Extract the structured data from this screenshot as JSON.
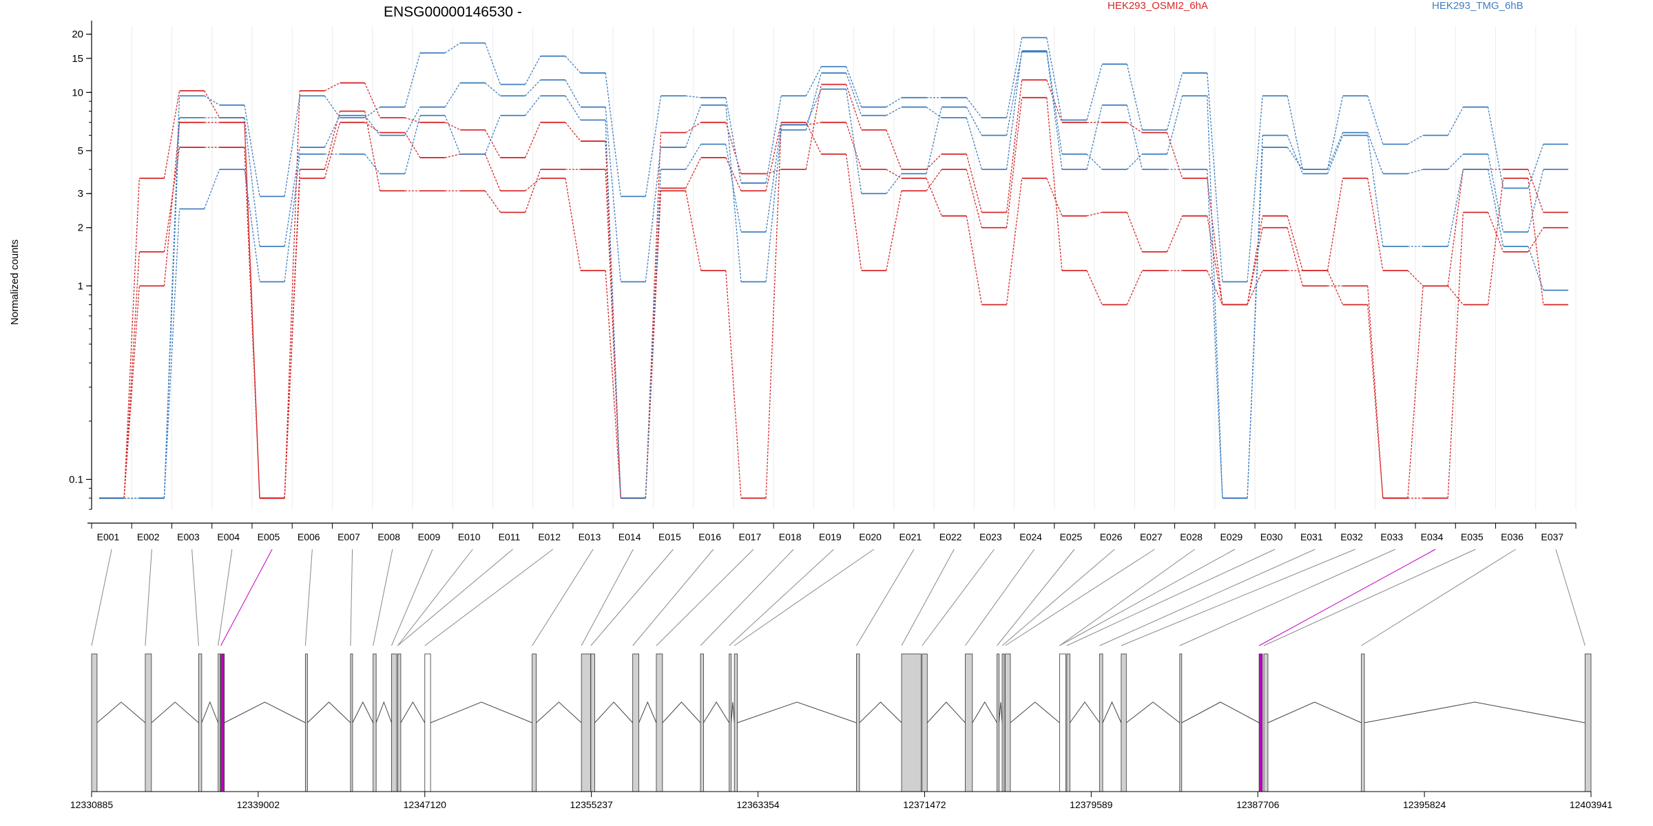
{
  "chart_data": {
    "type": "line",
    "title": "ENSG00000146530 -",
    "ylabel": "Normalized counts",
    "yscale": "log",
    "ylim": [
      0.07,
      22
    ],
    "yticks": [
      {
        "label": "0.1",
        "value": 0.1
      },
      {
        "label": "1",
        "value": 1
      },
      {
        "label": "2",
        "value": 2
      },
      {
        "label": "3",
        "value": 3
      },
      {
        "label": "5",
        "value": 5
      },
      {
        "label": "10",
        "value": 10
      },
      {
        "label": "15",
        "value": 15
      },
      {
        "label": "20",
        "value": 20
      }
    ],
    "grid": "vertical",
    "legend": [
      {
        "name": "HEK293_OSMI2_6hA",
        "color": "#d62728"
      },
      {
        "name": "HEK293_TMG_6hB",
        "color": "#3f7fbf"
      }
    ],
    "categories": [
      "E001",
      "E002",
      "E003",
      "E004",
      "E005",
      "E006",
      "E007",
      "E008",
      "E009",
      "E010",
      "E011",
      "E012",
      "E013",
      "E014",
      "E015",
      "E016",
      "E017",
      "E018",
      "E019",
      "E020",
      "E021",
      "E022",
      "E023",
      "E024",
      "E025",
      "E026",
      "E027",
      "E028",
      "E029",
      "E030",
      "E031",
      "E032",
      "E033",
      "E034",
      "E035",
      "E036",
      "E037"
    ],
    "series": [
      {
        "group": "HEK293_OSMI2_6hA",
        "color": "#d62728",
        "values": [
          0.08,
          3.6,
          10.2,
          7.4,
          0.08,
          10.2,
          11.2,
          7.4,
          7.0,
          6.4,
          4.6,
          7.0,
          5.6,
          0.08,
          6.2,
          7.0,
          3.8,
          4.0,
          11.0,
          6.4,
          4.0,
          4.8,
          2.4,
          11.6,
          7.0,
          7.0,
          6.2,
          3.6,
          0.8,
          2.3,
          1.2,
          3.6,
          1.2,
          1.0,
          4.0,
          4.0,
          2.4
        ]
      },
      {
        "group": "HEK293_OSMI2_6hA",
        "color": "#d62728",
        "values": [
          0.08,
          1.5,
          5.2,
          5.2,
          0.08,
          4.0,
          8.0,
          3.1,
          3.1,
          3.1,
          2.4,
          4.0,
          4.0,
          0.08,
          3.1,
          1.2,
          0.08,
          6.8,
          7.0,
          4.0,
          3.6,
          2.3,
          0.8,
          3.6,
          2.3,
          2.4,
          1.5,
          2.3,
          0.8,
          2.0,
          1.0,
          1.0,
          0.08,
          0.08,
          2.4,
          1.5,
          2.0
        ]
      },
      {
        "group": "HEK293_OSMI2_6hA",
        "color": "#d62728",
        "values": [
          0.08,
          1.0,
          7.0,
          7.0,
          0.08,
          3.6,
          7.0,
          6.2,
          4.6,
          4.8,
          3.1,
          3.6,
          1.2,
          0.08,
          3.2,
          4.6,
          3.1,
          7.0,
          4.8,
          1.2,
          3.1,
          4.0,
          2.0,
          9.4,
          1.2,
          0.8,
          1.2,
          1.2,
          0.8,
          1.2,
          1.2,
          0.8,
          0.08,
          1.0,
          0.8,
          3.6,
          0.8
        ]
      },
      {
        "group": "HEK293_TMG_6hB",
        "color": "#3f7fbf",
        "values": [
          0.08,
          0.08,
          9.6,
          8.6,
          2.9,
          9.6,
          7.4,
          8.4,
          16.0,
          18.0,
          11.0,
          15.4,
          12.6,
          2.9,
          9.6,
          9.4,
          3.4,
          9.6,
          13.6,
          8.4,
          9.4,
          9.4,
          7.4,
          19.2,
          7.2,
          14.0,
          6.4,
          12.6,
          1.05,
          9.6,
          4.0,
          9.6,
          5.4,
          6.0,
          8.4,
          3.2,
          5.4
        ]
      },
      {
        "group": "HEK293_TMG_6hB",
        "color": "#3f7fbf",
        "values": [
          0.08,
          0.08,
          7.4,
          7.4,
          1.6,
          5.2,
          7.6,
          6.0,
          8.4,
          11.2,
          9.6,
          11.6,
          8.4,
          1.05,
          5.2,
          8.6,
          1.05,
          6.4,
          12.6,
          7.6,
          8.4,
          7.4,
          4.0,
          16.4,
          4.8,
          4.0,
          4.8,
          9.6,
          0.08,
          5.2,
          4.0,
          6.2,
          3.8,
          4.0,
          4.8,
          1.9,
          4.0
        ]
      },
      {
        "group": "HEK293_TMG_6hB",
        "color": "#3f7fbf",
        "values": [
          0.08,
          0.08,
          2.5,
          4.0,
          1.05,
          4.8,
          4.8,
          3.8,
          7.6,
          4.8,
          7.6,
          9.6,
          7.2,
          0.08,
          4.0,
          5.4,
          1.9,
          6.8,
          10.4,
          3.0,
          3.8,
          8.4,
          6.0,
          16.2,
          4.0,
          8.6,
          4.0,
          4.0,
          0.08,
          6.0,
          3.8,
          6.0,
          1.6,
          1.6,
          4.0,
          1.6,
          0.95
        ]
      }
    ],
    "gene_model": {
      "coordinate_ticks": [
        "12330885",
        "12339002",
        "12347120",
        "12355237",
        "12363354",
        "12371472",
        "12379589",
        "12387706",
        "12395824",
        "12403941"
      ],
      "exons": [
        {
          "start": 12330885,
          "end": 12331150,
          "fill": "#d0d0d0"
        },
        {
          "start": 12333500,
          "end": 12333800,
          "fill": "#d0d0d0"
        },
        {
          "start": 12336100,
          "end": 12336250,
          "fill": "#d0d0d0"
        },
        {
          "start": 12337050,
          "end": 12337150,
          "fill": "#d0d0d0"
        },
        {
          "start": 12337180,
          "end": 12337350,
          "fill": "#c000c0"
        },
        {
          "start": 12341300,
          "end": 12341400,
          "fill": "#d0d0d0"
        },
        {
          "start": 12343500,
          "end": 12343600,
          "fill": "#d0d0d0"
        },
        {
          "start": 12344600,
          "end": 12344750,
          "fill": "#d0d0d0"
        },
        {
          "start": 12345500,
          "end": 12345750,
          "fill": "#d0d0d0"
        },
        {
          "start": 12345800,
          "end": 12345950,
          "fill": "#d0d0d0"
        },
        {
          "start": 12347120,
          "end": 12347400,
          "fill": "#ffffff"
        },
        {
          "start": 12352350,
          "end": 12352550,
          "fill": "#d0d0d0"
        },
        {
          "start": 12354750,
          "end": 12355200,
          "fill": "#d0d0d0"
        },
        {
          "start": 12355210,
          "end": 12355400,
          "fill": "#d0d0d0"
        },
        {
          "start": 12357250,
          "end": 12357550,
          "fill": "#d0d0d0"
        },
        {
          "start": 12358400,
          "end": 12358700,
          "fill": "#d0d0d0"
        },
        {
          "start": 12360550,
          "end": 12360700,
          "fill": "#d0d0d0"
        },
        {
          "start": 12361950,
          "end": 12362050,
          "fill": "#d0d0d0"
        },
        {
          "start": 12362200,
          "end": 12362350,
          "fill": "#d0d0d0"
        },
        {
          "start": 12368150,
          "end": 12368300,
          "fill": "#d0d0d0"
        },
        {
          "start": 12370350,
          "end": 12371300,
          "fill": "#d0d0d0"
        },
        {
          "start": 12371350,
          "end": 12371600,
          "fill": "#d0d0d0"
        },
        {
          "start": 12373450,
          "end": 12373800,
          "fill": "#d0d0d0"
        },
        {
          "start": 12375000,
          "end": 12375100,
          "fill": "#d0d0d0"
        },
        {
          "start": 12375250,
          "end": 12375350,
          "fill": "#d0d0d0"
        },
        {
          "start": 12375400,
          "end": 12375650,
          "fill": "#d0d0d0"
        },
        {
          "start": 12378050,
          "end": 12378350,
          "fill": "#ffffff"
        },
        {
          "start": 12378400,
          "end": 12378550,
          "fill": "#d0d0d0"
        },
        {
          "start": 12380000,
          "end": 12380150,
          "fill": "#d0d0d0"
        },
        {
          "start": 12381050,
          "end": 12381300,
          "fill": "#d0d0d0"
        },
        {
          "start": 12383900,
          "end": 12384000,
          "fill": "#d0d0d0"
        },
        {
          "start": 12387770,
          "end": 12387930,
          "fill": "#c000c0"
        },
        {
          "start": 12388000,
          "end": 12388200,
          "fill": "#d0d0d0"
        },
        {
          "start": 12392750,
          "end": 12392900,
          "fill": "#d0d0d0"
        },
        {
          "start": 12403650,
          "end": 12403941,
          "fill": "#d0d0d0"
        }
      ]
    }
  }
}
